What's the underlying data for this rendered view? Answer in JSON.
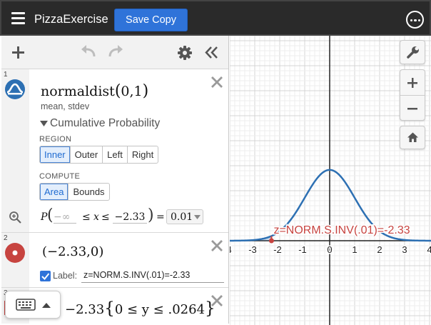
{
  "header": {
    "title": "PizzaExercise",
    "save_label": "Save Copy"
  },
  "expressions": [
    {
      "index": "1",
      "formula": {
        "fn": "normaldist",
        "open": "(",
        "args": "0,1",
        "close": ")"
      },
      "params_hint": "mean, stdev",
      "section_title": "Cumulative Probability",
      "region_label": "REGION",
      "region_options": [
        "Inner",
        "Outer",
        "Left",
        "Right"
      ],
      "region_selected": "Inner",
      "compute_label": "COMPUTE",
      "compute_options": [
        "Area",
        "Bounds"
      ],
      "compute_selected": "Area",
      "probability": {
        "p": "P",
        "lower_placeholder": "−∞",
        "le1": "≤",
        "var": "x",
        "le2": "≤",
        "upper": "−2.33",
        "equals": "=",
        "result": "0.01"
      }
    },
    {
      "index": "2",
      "point": "(−2.33,0)",
      "label_text": "Label:",
      "label_value": "z=NORM.S.INV(.01)=-2.33",
      "label_checked": true
    },
    {
      "index": "3",
      "segment": {
        "x": "−2.33",
        "open": "{",
        "cond": "0 ≤ y ≤ .0264",
        "close": "}"
      }
    }
  ],
  "graph": {
    "x_ticks": [
      "-4",
      "-3",
      "-2",
      "-1",
      "0",
      "1",
      "2",
      "3",
      "4"
    ],
    "point_label": "z=NORM.S.INV(.01)=-2.33",
    "curve_color": "#2d70b3",
    "point_color": "#c74440",
    "shade_color": "#2d70b3",
    "distribution": {
      "mean": 0,
      "stdev": 1,
      "upper_bound": -2.33
    }
  },
  "colors": {
    "accent": "#2f73d9",
    "header_bg": "#2a2a2a",
    "point_red": "#c74440",
    "curve_blue": "#2d70b3"
  }
}
